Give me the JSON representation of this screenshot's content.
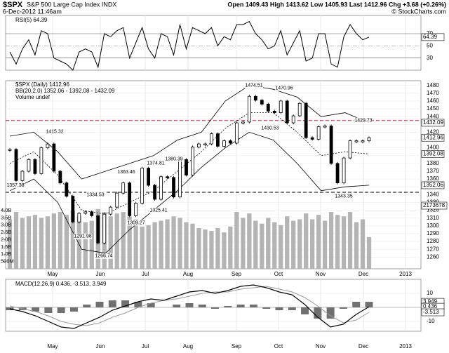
{
  "header": {
    "symbol": "$SPX",
    "name": "S&P 500 Large Cap Index INDX",
    "date": "6-Dec-2012 11:46am",
    "quote": "Open 1409.43 High 1413.62 Low 1405.93 Last 1412.96 Chg +3.68 (+0.26%)",
    "source": "© StockCharts.com"
  },
  "months": [
    "May",
    "Jun",
    "Jul",
    "Aug",
    "Sep",
    "Oct",
    "Nov",
    "Dec",
    "2013"
  ],
  "chart_data": [
    {
      "type": "line",
      "legend": "RSI(5) 64.39",
      "color": "#000000",
      "values": [
        40,
        20,
        45,
        60,
        35,
        75,
        70,
        30,
        25,
        20,
        10,
        40,
        45,
        40,
        15,
        70,
        65,
        75,
        80,
        30,
        55,
        80,
        45,
        30,
        70,
        65,
        35,
        85,
        45,
        80,
        75,
        70,
        80,
        50,
        65,
        60,
        85,
        85,
        90,
        70,
        60,
        45,
        50,
        75,
        35,
        55,
        75,
        25,
        30,
        70,
        70,
        20,
        15,
        65,
        85,
        70,
        60,
        64.39
      ],
      "ylim": [
        10,
        100
      ],
      "yticks": [
        30,
        50,
        70
      ]
    },
    {
      "type": "price",
      "legend": [
        "$SPX (Daily) 1412.96",
        "BB(20,2.0) 1352.06 - 1392.08 - 1432.09",
        "Volume undef"
      ],
      "color": "#000000",
      "volume_color": "#b4b4b4",
      "close": [
        1398,
        1358,
        1370,
        1385,
        1367,
        1400,
        1405,
        1370,
        1355,
        1338,
        1305,
        1316,
        1318,
        1313,
        1278,
        1315,
        1324,
        1342,
        1355,
        1313,
        1329,
        1374,
        1352,
        1334,
        1363,
        1362,
        1337,
        1385,
        1365,
        1401,
        1405,
        1405,
        1418,
        1402,
        1409,
        1406,
        1432,
        1433,
        1466,
        1461,
        1456,
        1447,
        1445,
        1460,
        1432,
        1441,
        1457,
        1413,
        1411,
        1427,
        1428,
        1380,
        1355,
        1387,
        1409,
        1409,
        1409,
        1412.96
      ],
      "bb_upper": [
        1415,
        1420,
        1395,
        1360,
        1370,
        1380,
        1390,
        1410,
        1420,
        1460,
        1480,
        1475,
        1465,
        1440,
        1445,
        1432.09
      ],
      "bb_middle": [
        1380,
        1395,
        1365,
        1320,
        1315,
        1330,
        1345,
        1370,
        1395,
        1425,
        1445,
        1445,
        1420,
        1390,
        1395,
        1392.08
      ],
      "bb_lower": [
        1345,
        1360,
        1330,
        1270,
        1265,
        1295,
        1320,
        1345,
        1375,
        1400,
        1420,
        1410,
        1380,
        1345,
        1350,
        1352.06
      ],
      "volume": [
        3400000000,
        3900000000,
        3500000000,
        3600000000,
        3700000000,
        3500000000,
        3600000000,
        3800000000,
        3900000000,
        3700000000,
        4000000000,
        3600000000,
        3200000000,
        3300000000,
        4100000000,
        3900000000,
        3600000000,
        3800000000,
        3900000000,
        3600000000,
        3400000000,
        2900000000,
        3000000000,
        3200000000,
        3300000000,
        3400000000,
        3600000000,
        3500000000,
        3200000000,
        3100000000,
        2800000000,
        2700000000,
        2600000000,
        2800000000,
        2500000000,
        2900000000,
        3900000000,
        3500000000,
        3800000000,
        3300000000,
        3100000000,
        3500000000,
        3200000000,
        3000000000,
        3600000000,
        3300000000,
        3400000000,
        3800000000,
        3400000000,
        3700000000,
        3300000000,
        3900000000,
        3700000000,
        3600000000,
        3900000000,
        3200000000,
        3400000000,
        2173678000
      ],
      "volume_last_label": "2173678",
      "volume_ylim": [
        0,
        4000000000
      ],
      "volume_ticks": [
        {
          "value": 4000000000,
          "label": "4.0B"
        },
        {
          "value": 3500000000,
          "label": "3.5B"
        },
        {
          "value": 3000000000,
          "label": "3.0B"
        },
        {
          "value": 2500000000,
          "label": "2.5B"
        },
        {
          "value": 2000000000,
          "label": "2.0B"
        },
        {
          "value": 1500000000,
          "label": "1.5B"
        },
        {
          "value": 1000000000,
          "label": "1.0B"
        },
        {
          "value": 500000000,
          "label": "500M"
        }
      ],
      "annotations": [
        1357.38,
        1415.32,
        1291.98,
        1266.74,
        1334.53,
        1309.27,
        1363.46,
        1374.81,
        1325.41,
        1380.39,
        1474.51,
        1470.96,
        1430.53,
        1343.35,
        1429.73
      ],
      "hlines": [
        {
          "value": 1435,
          "color": "#c0282d"
        },
        {
          "value": 1343,
          "color": "#000000"
        }
      ],
      "ylim": [
        1245,
        1486
      ],
      "yticks": [
        1260,
        1270,
        1280,
        1290,
        1300,
        1310,
        1320,
        1330,
        1340,
        1350,
        1360,
        1370,
        1380,
        1390,
        1400,
        1410,
        1420,
        1430,
        1440,
        1450,
        1460,
        1470,
        1480
      ]
    },
    {
      "type": "macd",
      "legend": "MACD(12,26,9) 0.436, -3.513, 3.949",
      "color": "#000000",
      "signal_color": "#9a9a9a",
      "histogram_color": "#707070",
      "macd": [
        -1,
        -3,
        -6,
        -10,
        -14,
        -15,
        -11,
        -7,
        -2,
        1,
        4,
        6,
        5,
        8,
        11,
        12,
        10,
        12,
        15,
        16,
        14,
        11,
        9,
        2,
        -7,
        -14,
        -12,
        -5,
        0.436
      ],
      "signal": [
        1,
        -1,
        -3,
        -6,
        -10,
        -12,
        -13,
        -11,
        -7,
        -4,
        0,
        3,
        5,
        6,
        8,
        10,
        11,
        11,
        13,
        14,
        15,
        13,
        11,
        7,
        1,
        -6,
        -11,
        -9,
        -3.513
      ],
      "histogram": [
        -2,
        -2,
        -3,
        -4,
        -4,
        -3,
        2,
        4,
        5,
        5,
        4,
        3,
        0,
        2,
        3,
        2,
        -1,
        1,
        2,
        2,
        -1,
        -2,
        -2,
        -5,
        -8,
        -8,
        -1,
        4,
        3.949
      ],
      "ylim": [
        -17,
        20
      ],
      "yticks": [
        -10,
        0,
        10
      ]
    }
  ]
}
